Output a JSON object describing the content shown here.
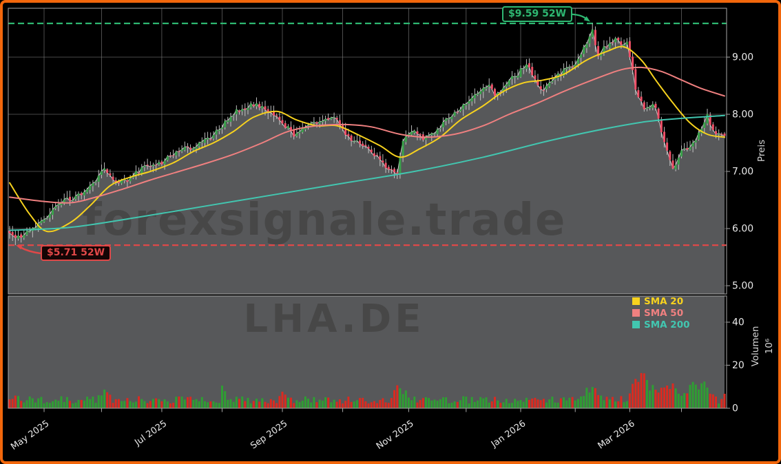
{
  "window": {
    "site_watermark": "forexsignale.trade",
    "symbol_watermark": "LHA.DE"
  },
  "colors": {
    "background": "#000000",
    "border": "#f2670c",
    "panel_fill": "#57585a",
    "watermark": "#474747",
    "grid": "#7a7a7a",
    "spine": "#a8a8a8",
    "tick_label": "#e8e8e8",
    "axis_title": "#d6d6d6",
    "close_line": "#c9c9c9",
    "candle_up": "#3aa24b",
    "candle_down": "#ef4f67",
    "wick": "#d0d0d0",
    "volume_up": "#2f9e33",
    "volume_down": "#dc2a20",
    "sma20": "#f7d21e",
    "sma50": "#f08080",
    "sma200": "#42c6b0",
    "high_line": "#2eb872",
    "low_line": "#e04848"
  },
  "price_axis": {
    "title": "Preis",
    "ticks": [
      {
        "value": 9,
        "label": "9.00"
      },
      {
        "value": 8,
        "label": "8.00"
      },
      {
        "value": 7,
        "label": "7.00"
      },
      {
        "value": 6,
        "label": "6.00"
      },
      {
        "value": 5,
        "label": "5.00"
      }
    ]
  },
  "volume_axis": {
    "title": "Volumen",
    "unit": "10⁶",
    "ticks": [
      {
        "value": 40,
        "label": "40"
      },
      {
        "value": 20,
        "label": "20"
      },
      {
        "value": 0,
        "label": "0"
      }
    ]
  },
  "time_axis": {
    "ticks": [
      {
        "day": 12,
        "label": "May 2025"
      },
      {
        "day": 32,
        "label": ""
      },
      {
        "day": 53,
        "label": "Jul 2025"
      },
      {
        "day": 74,
        "label": ""
      },
      {
        "day": 95,
        "label": "Sep 2025"
      },
      {
        "day": 116,
        "label": ""
      },
      {
        "day": 139,
        "label": "Nov 2025"
      },
      {
        "day": 159,
        "label": ""
      },
      {
        "day": 178,
        "label": "Jan 2026"
      },
      {
        "day": 197,
        "label": ""
      },
      {
        "day": 216,
        "label": "Mar 2026"
      },
      {
        "day": 234,
        "label": ""
      }
    ]
  },
  "annotations": {
    "high": {
      "text": "$9.59 52W",
      "value": 9.59
    },
    "low": {
      "text": "$5.71 52W",
      "value": 5.71
    }
  },
  "legend": {
    "items": [
      {
        "label": "SMA 20",
        "color": "#f7d21e"
      },
      {
        "label": "SMA 50",
        "color": "#f08080"
      },
      {
        "label": "SMA 200",
        "color": "#42c6b0"
      }
    ]
  },
  "chart_data": {
    "type": "candlestick",
    "symbol": "LHA.DE",
    "panels": [
      "price",
      "volume"
    ],
    "days": 250,
    "price_ylim": [
      4.855,
      9.855
    ],
    "volume_ylim_millions": [
      0,
      52
    ],
    "high_52w": 9.59,
    "low_52w": 5.71,
    "high_52w_day": 203,
    "low_52w_day": 2,
    "last_close": 7.62,
    "close_keyframes": [
      [
        0,
        5.95
      ],
      [
        2,
        5.8
      ],
      [
        5,
        5.92
      ],
      [
        12,
        6.15
      ],
      [
        18,
        6.48
      ],
      [
        23,
        6.55
      ],
      [
        28,
        6.72
      ],
      [
        33,
        7.08
      ],
      [
        36,
        6.82
      ],
      [
        41,
        6.85
      ],
      [
        46,
        7.05
      ],
      [
        53,
        7.15
      ],
      [
        58,
        7.35
      ],
      [
        63,
        7.42
      ],
      [
        69,
        7.55
      ],
      [
        73,
        7.75
      ],
      [
        79,
        8.05
      ],
      [
        85,
        8.18
      ],
      [
        90,
        8.05
      ],
      [
        95,
        7.85
      ],
      [
        99,
        7.65
      ],
      [
        103,
        7.8
      ],
      [
        108,
        7.85
      ],
      [
        113,
        7.95
      ],
      [
        118,
        7.6
      ],
      [
        123,
        7.45
      ],
      [
        127,
        7.3
      ],
      [
        132,
        7.05
      ],
      [
        135,
        6.95
      ],
      [
        137,
        7.55
      ],
      [
        141,
        7.7
      ],
      [
        144,
        7.55
      ],
      [
        148,
        7.7
      ],
      [
        153,
        7.95
      ],
      [
        156,
        8.05
      ],
      [
        160,
        8.25
      ],
      [
        163,
        8.4
      ],
      [
        167,
        8.55
      ],
      [
        169,
        8.3
      ],
      [
        173,
        8.55
      ],
      [
        177,
        8.7
      ],
      [
        180,
        8.9
      ],
      [
        183,
        8.6
      ],
      [
        186,
        8.4
      ],
      [
        190,
        8.65
      ],
      [
        193,
        8.75
      ],
      [
        197,
        8.9
      ],
      [
        201,
        9.25
      ],
      [
        203,
        9.45
      ],
      [
        205,
        9.05
      ],
      [
        208,
        9.2
      ],
      [
        211,
        9.35
      ],
      [
        214,
        9.2
      ],
      [
        215,
        9.3
      ],
      [
        218,
        8.45
      ],
      [
        221,
        8.1
      ],
      [
        225,
        8.15
      ],
      [
        227,
        7.7
      ],
      [
        231,
        7.05
      ],
      [
        234,
        7.35
      ],
      [
        237,
        7.45
      ],
      [
        239,
        7.55
      ],
      [
        243,
        8.0
      ],
      [
        245,
        7.7
      ],
      [
        249,
        7.62
      ]
    ],
    "sma20_keyframes": [
      [
        0,
        6.8
      ],
      [
        7,
        6.25
      ],
      [
        13,
        5.95
      ],
      [
        21,
        6.1
      ],
      [
        28,
        6.4
      ],
      [
        35,
        6.75
      ],
      [
        42,
        6.9
      ],
      [
        49,
        7.0
      ],
      [
        57,
        7.15
      ],
      [
        64,
        7.35
      ],
      [
        71,
        7.5
      ],
      [
        78,
        7.7
      ],
      [
        85,
        7.95
      ],
      [
        93,
        8.05
      ],
      [
        100,
        7.9
      ],
      [
        107,
        7.8
      ],
      [
        114,
        7.8
      ],
      [
        121,
        7.65
      ],
      [
        129,
        7.45
      ],
      [
        136,
        7.25
      ],
      [
        143,
        7.4
      ],
      [
        150,
        7.6
      ],
      [
        157,
        7.9
      ],
      [
        165,
        8.15
      ],
      [
        172,
        8.4
      ],
      [
        179,
        8.55
      ],
      [
        186,
        8.6
      ],
      [
        193,
        8.7
      ],
      [
        201,
        8.95
      ],
      [
        208,
        9.1
      ],
      [
        214,
        9.18
      ],
      [
        220,
        8.95
      ],
      [
        225,
        8.6
      ],
      [
        231,
        8.2
      ],
      [
        237,
        7.85
      ],
      [
        243,
        7.65
      ],
      [
        249,
        7.6
      ]
    ],
    "sma50_keyframes": [
      [
        0,
        6.55
      ],
      [
        11,
        6.48
      ],
      [
        21,
        6.45
      ],
      [
        30,
        6.55
      ],
      [
        40,
        6.7
      ],
      [
        49,
        6.85
      ],
      [
        59,
        7.0
      ],
      [
        69,
        7.15
      ],
      [
        78,
        7.3
      ],
      [
        88,
        7.5
      ],
      [
        97,
        7.7
      ],
      [
        107,
        7.8
      ],
      [
        117,
        7.82
      ],
      [
        126,
        7.78
      ],
      [
        136,
        7.65
      ],
      [
        145,
        7.6
      ],
      [
        155,
        7.65
      ],
      [
        165,
        7.8
      ],
      [
        174,
        8.0
      ],
      [
        184,
        8.2
      ],
      [
        193,
        8.4
      ],
      [
        203,
        8.6
      ],
      [
        213,
        8.78
      ],
      [
        220,
        8.82
      ],
      [
        227,
        8.75
      ],
      [
        234,
        8.6
      ],
      [
        241,
        8.45
      ],
      [
        249,
        8.32
      ]
    ],
    "sma200_keyframes": [
      [
        0,
        5.97
      ],
      [
        21,
        6.02
      ],
      [
        45,
        6.2
      ],
      [
        69,
        6.4
      ],
      [
        93,
        6.6
      ],
      [
        117,
        6.8
      ],
      [
        141,
        7.0
      ],
      [
        165,
        7.25
      ],
      [
        189,
        7.55
      ],
      [
        213,
        7.8
      ],
      [
        227,
        7.9
      ],
      [
        249,
        7.98
      ]
    ],
    "volume_spike_keyframes": [
      [
        0,
        0
      ],
      [
        2,
        3
      ],
      [
        4,
        0
      ],
      [
        30,
        0
      ],
      [
        33,
        5
      ],
      [
        36,
        0
      ],
      [
        73,
        0
      ],
      [
        74,
        5
      ],
      [
        76,
        0
      ],
      [
        93,
        0
      ],
      [
        95,
        3
      ],
      [
        97,
        0
      ],
      [
        133,
        0
      ],
      [
        135,
        7
      ],
      [
        138,
        3
      ],
      [
        141,
        0
      ],
      [
        199,
        0
      ],
      [
        201,
        4
      ],
      [
        204,
        5
      ],
      [
        207,
        1
      ],
      [
        215,
        0
      ],
      [
        217,
        8
      ],
      [
        219,
        10
      ],
      [
        221,
        12
      ],
      [
        223,
        6
      ],
      [
        226,
        4
      ],
      [
        229,
        5
      ],
      [
        231,
        8
      ],
      [
        233,
        4
      ],
      [
        236,
        2
      ],
      [
        238,
        10
      ],
      [
        240,
        6
      ],
      [
        242,
        9
      ],
      [
        244,
        3
      ],
      [
        247,
        0
      ],
      [
        249,
        2
      ]
    ],
    "synthesis": {
      "close_noise": 0.085,
      "open_noise": 0.045,
      "wick_min": 0.015,
      "wick_noise": 0.1,
      "volume_base": 2.2,
      "volume_noise": 3.4
    }
  }
}
